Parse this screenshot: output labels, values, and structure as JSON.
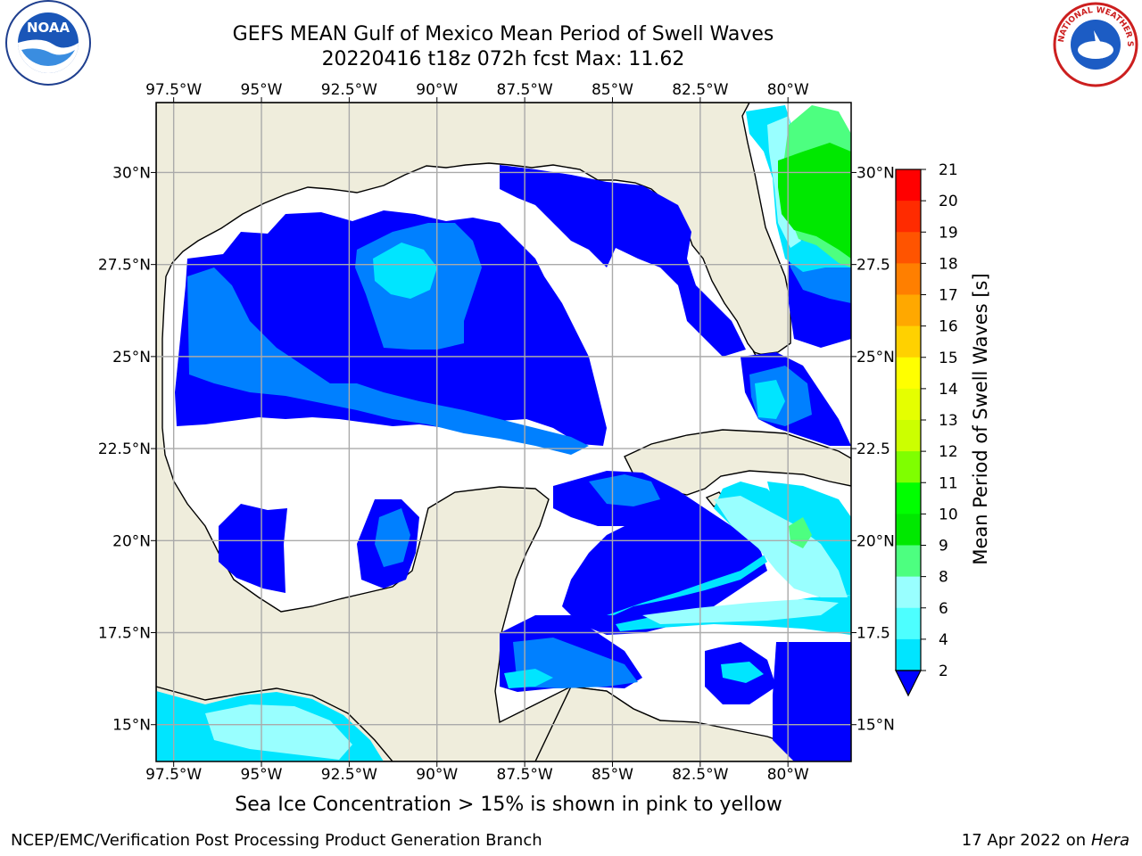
{
  "title": {
    "line1": "GEFS MEAN Gulf of Mexico Mean Period of Swell Waves",
    "line2": "20220416 t18z 072h fcst   Max: 11.62"
  },
  "map": {
    "lon_ticks": [
      "97.5°W",
      "95°W",
      "92.5°W",
      "90°W",
      "87.5°W",
      "85°W",
      "82.5°W",
      "80°W"
    ],
    "lon_values": [
      -97.5,
      -95,
      -92.5,
      -90,
      -87.5,
      -85,
      -82.5,
      -80
    ],
    "lat_ticks_left": [
      "30°N",
      "27.5°N",
      "25°N",
      "22.5°N",
      "20°N",
      "17.5°N",
      "15°N"
    ],
    "lat_ticks_right": [
      "30°N",
      "27.5",
      "25°N",
      "22.5",
      "20°N",
      "17.5",
      "15°N"
    ],
    "lat_values": [
      30,
      27.5,
      25,
      22.5,
      20,
      17.5,
      15
    ],
    "lon_range": [
      -98,
      -78.2
    ],
    "lat_range": [
      14,
      31.9
    ],
    "land_color": "#efeddc",
    "grid": true
  },
  "colorbar": {
    "label": "Mean Period of Swell Waves [s]",
    "ticks": [
      "21",
      "20",
      "19",
      "18",
      "17",
      "16",
      "15",
      "14",
      "13",
      "12",
      "11",
      "10",
      "9",
      "8",
      "6",
      "4",
      "2"
    ],
    "colors": [
      "#ff0000",
      "#ff2b00",
      "#ff5400",
      "#ff7f00",
      "#ffa800",
      "#ffd100",
      "#ffff00",
      "#e5ff00",
      "#ccff00",
      "#7fff00",
      "#00ff00",
      "#00e800",
      "#4dff80",
      "#99ffff",
      "#4dffff",
      "#00e5ff",
      "#0080ff",
      "#0000ff"
    ]
  },
  "footer": {
    "note": "Sea Ice Concentration > 15% is shown in pink to yellow",
    "credit_left": "NCEP/EMC/Verification Post Processing Product Generation Branch",
    "credit_date": "17 Apr 2022 on ",
    "credit_host": "Hera"
  },
  "logos": {
    "noaa_text": "NOAA",
    "nws_text": "NATIONAL WEATHER SERVICE"
  }
}
